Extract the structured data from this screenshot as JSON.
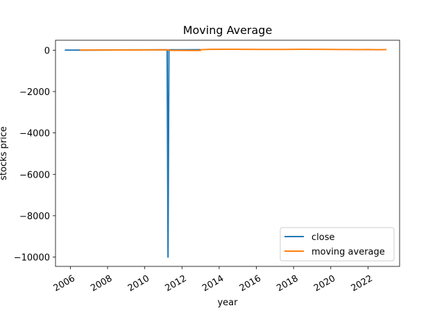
{
  "chart_data": {
    "type": "line",
    "title": "Moving Average",
    "xlabel": "year",
    "ylabel": "stocks price",
    "xlim": [
      2005.2,
      2023.7
    ],
    "ylim": [
      -10450,
      480
    ],
    "x_ticks": [
      2006,
      2008,
      2010,
      2012,
      2014,
      2016,
      2018,
      2020,
      2022
    ],
    "x_tick_labels": [
      "2006",
      "2008",
      "2010",
      "2012",
      "2014",
      "2016",
      "2018",
      "2020",
      "2022"
    ],
    "y_ticks": [
      0,
      -2000,
      -4000,
      -6000,
      -8000,
      -10000
    ],
    "y_tick_labels": [
      "0",
      "−2000",
      "−4000",
      "−6000",
      "−8000",
      "−10000"
    ],
    "grid": false,
    "legend_position": "lower right",
    "series": [
      {
        "name": "close",
        "color": "#1f77b4",
        "x": [
          2005.7,
          2007.0,
          2008.5,
          2010.0,
          2011.2,
          2011.25,
          2011.3,
          2011.4,
          2012.0,
          2013.0
        ],
        "y": [
          5,
          5,
          10,
          15,
          20,
          -10000,
          20,
          20,
          22,
          25
        ]
      },
      {
        "name": "moving average",
        "color": "#ff7f0e",
        "x": [
          2006.5,
          2008.0,
          2010.0,
          2011.2,
          2011.4,
          2012.5,
          2013.0,
          2013.0,
          2013.5,
          2014.5,
          2015.5,
          2016.5,
          2017.5,
          2018.0,
          2018.5,
          2019.0,
          2019.5,
          2020.0,
          2020.5,
          2021.0,
          2021.5,
          2022.0,
          2022.5,
          2023.0
        ],
        "y": [
          5,
          8,
          12,
          18,
          -10,
          -15,
          -15,
          25,
          40,
          45,
          42,
          35,
          38,
          40,
          45,
          40,
          42,
          35,
          30,
          32,
          28,
          30,
          25,
          28
        ]
      }
    ]
  }
}
